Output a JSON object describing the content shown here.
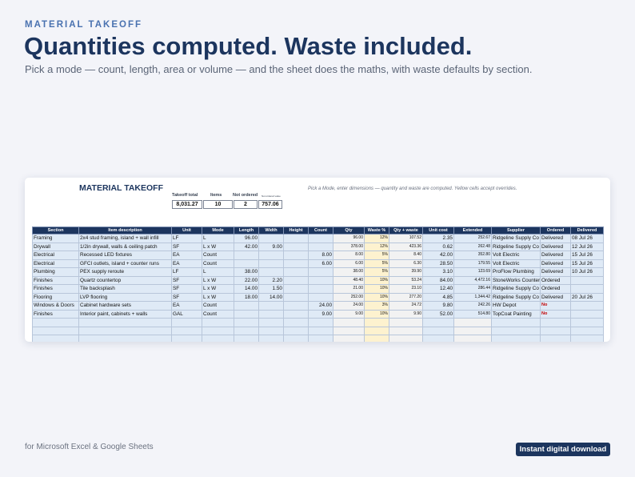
{
  "header": {
    "eyebrow": "MATERIAL TAKEOFF",
    "headline": "Quantities computed. Waste included.",
    "subhead": "Pick a mode — count, length, area or volume — and the sheet does the maths, with waste defaults by section."
  },
  "sheet": {
    "title": "MATERIAL TAKEOFF",
    "hint": "Pick a Mode, enter dimensions — quantity and waste are computed. Yellow cells accept overrides.",
    "kpis": [
      {
        "label": "Takeoff total",
        "value": "8,031.27"
      },
      {
        "label": "Items",
        "value": "10"
      },
      {
        "label": "Not ordered",
        "value": "2"
      },
      {
        "label": "Not ordered value",
        "value": "757.06"
      }
    ],
    "columns": [
      "Section",
      "Item description",
      "Unit",
      "Mode",
      "Length",
      "Width",
      "Height",
      "Count",
      "Qty",
      "Waste %",
      "Qty + waste",
      "Unit cost",
      "Extended",
      "Supplier",
      "Ordered",
      "Delivered"
    ],
    "rows": [
      [
        "Framing",
        "2x4 stud framing, island + wall infill",
        "LF",
        "L",
        "96.00",
        "",
        "",
        "",
        "96.00",
        "12%",
        "107.52",
        "2.35",
        "252.67",
        "Ridgeline Supply Co",
        "Delivered",
        "08 Jul 26"
      ],
      [
        "Drywall",
        "1/2in drywall, walls & ceiling patch",
        "SF",
        "L x W",
        "42.00",
        "9.00",
        "",
        "",
        "378.00",
        "12%",
        "423.36",
        "0.62",
        "262.48",
        "Ridgeline Supply Co",
        "Delivered",
        "12 Jul 26"
      ],
      [
        "Electrical",
        "Recessed LED fixtures",
        "EA",
        "Count",
        "",
        "",
        "",
        "8.00",
        "8.00",
        "5%",
        "8.40",
        "42.00",
        "352.80",
        "Volt Electric",
        "Delivered",
        "15 Jul 26"
      ],
      [
        "Electrical",
        "GFCI outlets, island + counter runs",
        "EA",
        "Count",
        "",
        "",
        "",
        "6.00",
        "6.00",
        "5%",
        "6.30",
        "28.50",
        "179.55",
        "Volt Electric",
        "Delivered",
        "15 Jul 26"
      ],
      [
        "Plumbing",
        "PEX supply reroute",
        "LF",
        "L",
        "38.00",
        "",
        "",
        "",
        "38.00",
        "5%",
        "39.90",
        "3.10",
        "123.69",
        "ProFlow Plumbing",
        "Delivered",
        "10 Jul 26"
      ],
      [
        "Finishes",
        "Quartz countertop",
        "SF",
        "L x W",
        "22.00",
        "2.20",
        "",
        "",
        "48.40",
        "10%",
        "53.24",
        "84.00",
        "4,472.16",
        "StoneWorks Counters",
        "Ordered",
        ""
      ],
      [
        "Finishes",
        "Tile backsplash",
        "SF",
        "L x W",
        "14.00",
        "1.50",
        "",
        "",
        "21.00",
        "10%",
        "23.10",
        "12.40",
        "286.44",
        "Ridgeline Supply Co",
        "Ordered",
        ""
      ],
      [
        "Flooring",
        "LVP flooring",
        "SF",
        "L x W",
        "18.00",
        "14.00",
        "",
        "",
        "252.00",
        "10%",
        "277.20",
        "4.85",
        "1,344.42",
        "Ridgeline Supply Co",
        "Delivered",
        "20 Jul 26"
      ],
      [
        "Windows & Doors",
        "Cabinet hardware sets",
        "EA",
        "Count",
        "",
        "",
        "",
        "24.00",
        "24.00",
        "3%",
        "24.72",
        "9.80",
        "242.26",
        "HW Depot",
        "No",
        ""
      ],
      [
        "Finishes",
        "Interior paint, cabinets + walls",
        "GAL",
        "Count",
        "",
        "",
        "",
        "9.00",
        "9.00",
        "10%",
        "9.90",
        "52.00",
        "514.80",
        "TopCoat Painting",
        "No",
        ""
      ]
    ],
    "empty_rows": 4
  },
  "footer": {
    "note": "for Microsoft Excel & Google Sheets",
    "badge": "Instant digital download"
  },
  "colors": {
    "navy": "#1c355e",
    "accent": "#4a72b0",
    "input_cell": "#dfeaf6",
    "override_cell": "#fdf2cf",
    "calc_cell": "#f2f2f2",
    "not_ordered": "#c00000"
  }
}
